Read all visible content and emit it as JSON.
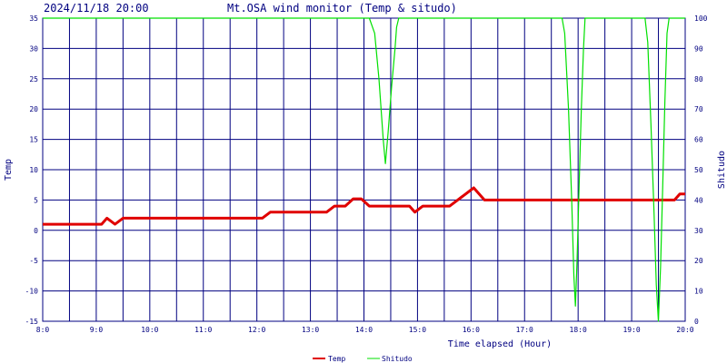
{
  "header": {
    "timestamp": "2024/11/18 20:00",
    "title": "Mt.OSA wind monitor (Temp & situdo)"
  },
  "chart_data": {
    "type": "line",
    "xlabel": "Time elapsed (Hour)",
    "ylabel_left": "Temp",
    "ylabel_right": "Shitudo",
    "x_range_hours_ago": [
      12,
      0
    ],
    "x_ticks": [
      {
        "hours_ago": 12,
        "label": "8:0"
      },
      {
        "hours_ago": 11,
        "label": "9:0"
      },
      {
        "hours_ago": 10,
        "label": "10:0"
      },
      {
        "hours_ago": 9,
        "label": "11:0"
      },
      {
        "hours_ago": 8,
        "label": "12:0"
      },
      {
        "hours_ago": 7,
        "label": "13:0"
      },
      {
        "hours_ago": 6,
        "label": "14:0"
      },
      {
        "hours_ago": 5,
        "label": "15:0"
      },
      {
        "hours_ago": 4,
        "label": "16:0"
      },
      {
        "hours_ago": 3,
        "label": "17:0"
      },
      {
        "hours_ago": 2,
        "label": "18:0"
      },
      {
        "hours_ago": 1,
        "label": "19:0"
      },
      {
        "hours_ago": 0,
        "label": "20:0"
      }
    ],
    "y_left": {
      "min": -15,
      "max": 35,
      "ticks": [
        -15,
        -10,
        -5,
        0,
        5,
        10,
        15,
        20,
        25,
        30,
        35
      ]
    },
    "y_right": {
      "min": 0,
      "max": 100,
      "ticks": [
        0,
        10,
        20,
        30,
        40,
        50,
        60,
        70,
        80,
        90,
        100
      ]
    },
    "grid": true,
    "legend_position": "bottom",
    "series": [
      {
        "name": "Temp",
        "axis": "left",
        "color": "#e00000",
        "points": [
          [
            0,
            1
          ],
          [
            1.1,
            1
          ],
          [
            1.2,
            2
          ],
          [
            1.35,
            1
          ],
          [
            1.5,
            2
          ],
          [
            4.1,
            2
          ],
          [
            4.25,
            3
          ],
          [
            5.3,
            3
          ],
          [
            5.45,
            4
          ],
          [
            5.65,
            4
          ],
          [
            5.8,
            5.2
          ],
          [
            5.95,
            5.2
          ],
          [
            6.1,
            4
          ],
          [
            6.85,
            4
          ],
          [
            6.95,
            3
          ],
          [
            7.1,
            4
          ],
          [
            7.6,
            4
          ],
          [
            7.75,
            5
          ],
          [
            8.05,
            7
          ],
          [
            8.25,
            5
          ],
          [
            11.8,
            5
          ],
          [
            11.9,
            6
          ],
          [
            12,
            6
          ]
        ]
      },
      {
        "name": "Shitudo",
        "axis": "right",
        "color": "#00e000",
        "points": [
          [
            0,
            100
          ],
          [
            6.1,
            100
          ],
          [
            6.2,
            95
          ],
          [
            6.28,
            80
          ],
          [
            6.36,
            60
          ],
          [
            6.4,
            52
          ],
          [
            6.45,
            62
          ],
          [
            6.52,
            78
          ],
          [
            6.58,
            90
          ],
          [
            6.61,
            97
          ],
          [
            6.65,
            100
          ],
          [
            9.7,
            100
          ],
          [
            9.75,
            95
          ],
          [
            9.82,
            70
          ],
          [
            9.88,
            40
          ],
          [
            9.92,
            15
          ],
          [
            9.95,
            5
          ],
          [
            9.98,
            20
          ],
          [
            10.02,
            45
          ],
          [
            10.06,
            70
          ],
          [
            10.1,
            90
          ],
          [
            10.13,
            100
          ],
          [
            11.25,
            100
          ],
          [
            11.3,
            92
          ],
          [
            11.36,
            65
          ],
          [
            11.42,
            35
          ],
          [
            11.46,
            12
          ],
          [
            11.5,
            0
          ],
          [
            11.54,
            18
          ],
          [
            11.58,
            45
          ],
          [
            11.62,
            72
          ],
          [
            11.66,
            95
          ],
          [
            11.7,
            100
          ],
          [
            12,
            100
          ]
        ]
      }
    ]
  }
}
